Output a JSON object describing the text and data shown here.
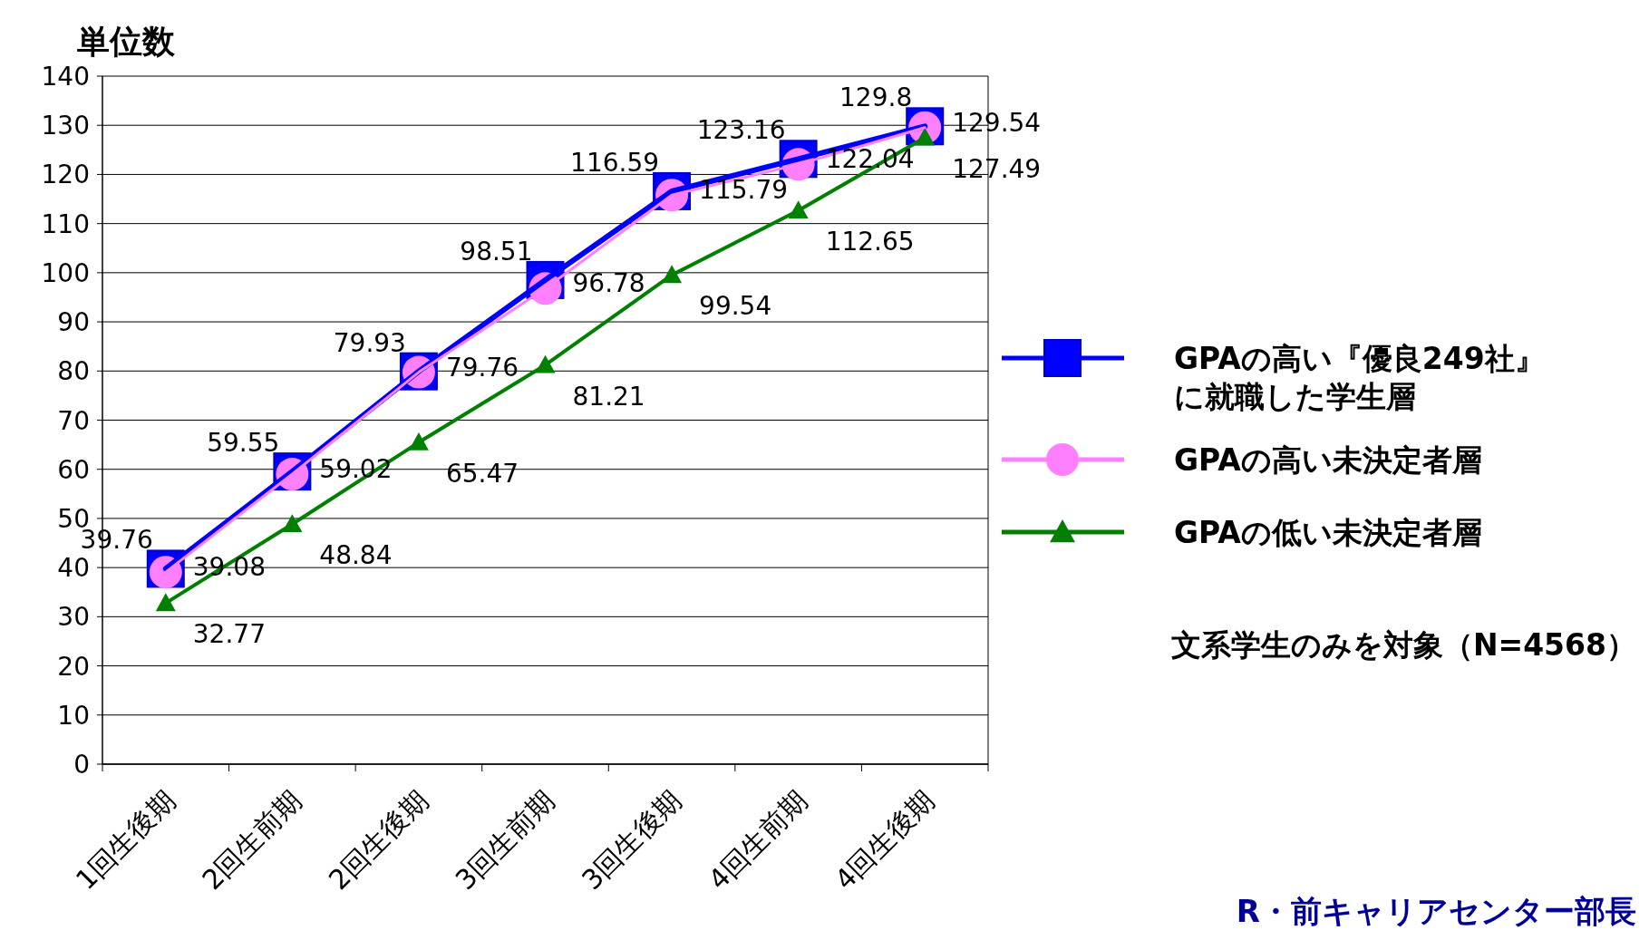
{
  "chart_data": {
    "type": "line",
    "ylabel": "単位数",
    "categories": [
      "1回生後期",
      "2回生前期",
      "2回生後期",
      "3回生前期",
      "3回生後期",
      "4回生前期",
      "4回生後期"
    ],
    "series": [
      {
        "name": "GPAの高い『優良249社』に就職した学生層",
        "color": "#0000ff",
        "marker": "square",
        "values": [
          39.76,
          59.55,
          79.93,
          98.51,
          116.59,
          123.16,
          129.8
        ]
      },
      {
        "name": "GPAの高い未決定者層",
        "color": "#ff80ff",
        "marker": "circle",
        "values": [
          39.08,
          59.02,
          79.76,
          96.78,
          115.79,
          122.04,
          129.54
        ]
      },
      {
        "name": "GPAの低い未決定者層",
        "color": "#008000",
        "marker": "triangle",
        "values": [
          32.77,
          48.84,
          65.47,
          81.21,
          99.54,
          112.65,
          127.49
        ]
      }
    ],
    "ylim": [
      0,
      140
    ],
    "yticks": [
      0,
      10,
      20,
      30,
      40,
      50,
      60,
      70,
      80,
      90,
      100,
      110,
      120,
      130,
      140
    ],
    "grid": "y",
    "legend": "right",
    "data_labels": true,
    "annotations": [
      "文系学生のみを対象（N=4568）",
      "R・前キャリアセンター部長"
    ]
  }
}
